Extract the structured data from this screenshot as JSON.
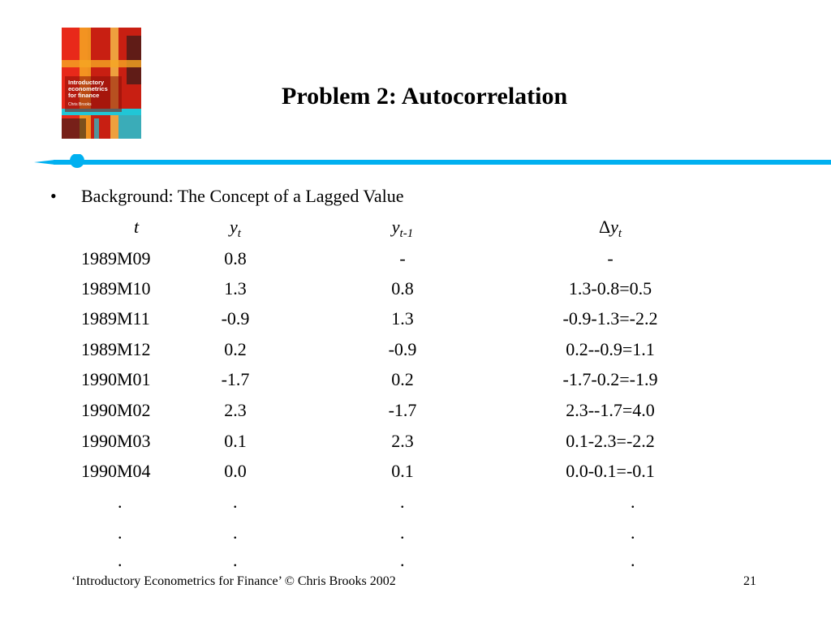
{
  "cover": {
    "title_lines": [
      "Introductory",
      "econometrics",
      "for finance"
    ],
    "author": "Chris Brooks",
    "colors": {
      "red": "#e8291a",
      "orange": "#f5a623",
      "cyan": "#21c6d6",
      "dark": "#1a1a1a"
    }
  },
  "slide": {
    "title": "Problem 2: Autocorrelation",
    "bullet_symbol": "•",
    "bullet_text": "Background: The Concept of a Lagged Value",
    "accent_color": "#00b0f0"
  },
  "table": {
    "headers": {
      "t": "t",
      "y": {
        "base": "y",
        "sub": "t"
      },
      "ylag": {
        "base": "y",
        "sub": "t-1"
      },
      "dy": {
        "symbol": "Δ",
        "base": "y",
        "sub": "t"
      }
    },
    "rows": [
      {
        "t": "1989M09",
        "y": "0.8",
        "ylag": "-",
        "dy": "-"
      },
      {
        "t": "1989M10",
        "y": "1.3",
        "ylag": "0.8",
        "dy": "1.3-0.8=0.5"
      },
      {
        "t": "1989M11",
        "y": "-0.9",
        "ylag": "1.3",
        "dy": "-0.9-1.3=-2.2"
      },
      {
        "t": "1989M12",
        "y": "0.2",
        "ylag": "-0.9",
        "dy": "0.2--0.9=1.1"
      },
      {
        "t": "1990M01",
        "y": "-1.7",
        "ylag": "0.2",
        "dy": "-1.7-0.2=-1.9"
      },
      {
        "t": "1990M02",
        "y": "2.3",
        "ylag": "-1.7",
        "dy": "2.3--1.7=4.0"
      },
      {
        "t": "1990M03",
        "y": "0.1",
        "ylag": "2.3",
        "dy": "0.1-2.3=-2.2"
      },
      {
        "t": "1990M04",
        "y": "0.0",
        "ylag": "0.1",
        "dy": "0.0-0.1=-0.1"
      }
    ],
    "continuation": "."
  },
  "footer": {
    "text": "‘Introductory Econometrics for Finance’ © Chris Brooks 2002",
    "page": "21"
  }
}
